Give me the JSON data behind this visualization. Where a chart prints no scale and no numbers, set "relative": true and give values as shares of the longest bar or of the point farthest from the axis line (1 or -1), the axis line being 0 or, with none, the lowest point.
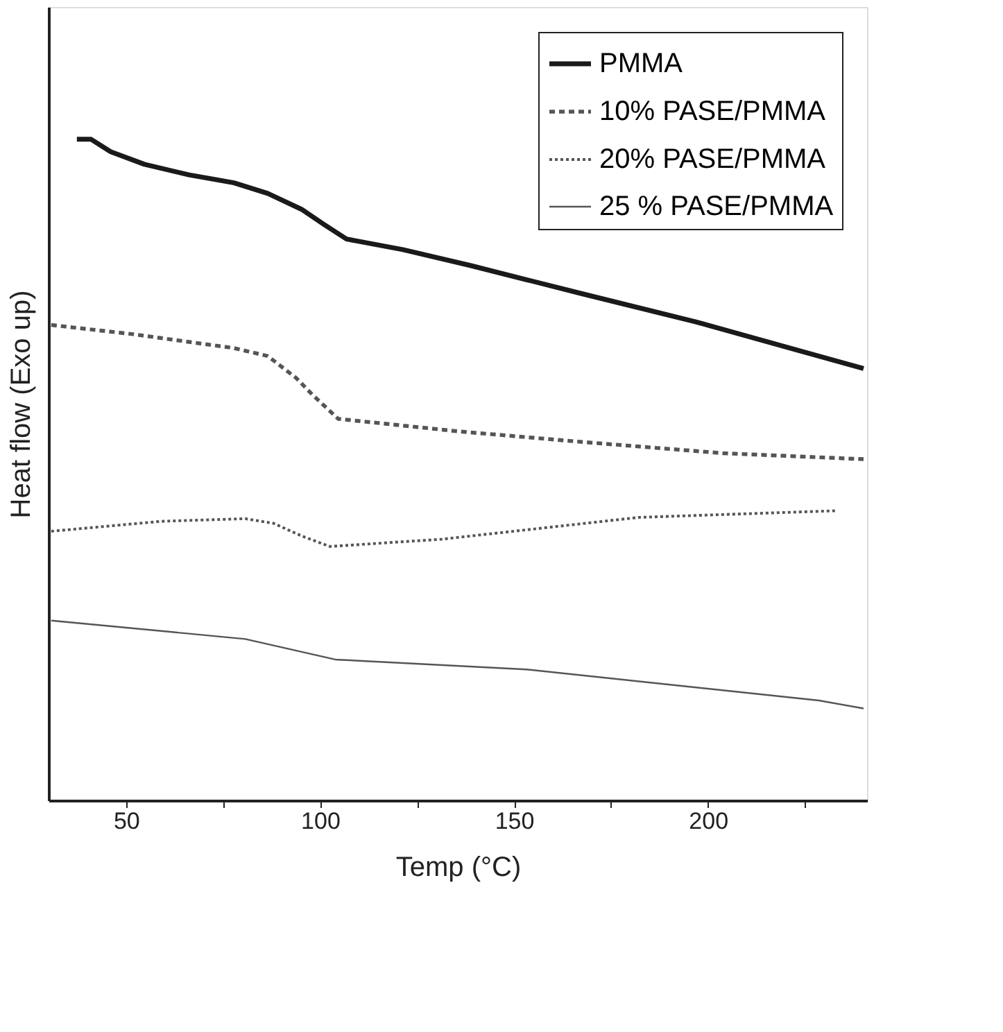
{
  "chart_data": {
    "type": "line",
    "relative": true,
    "xlabel": "Temp (°C)",
    "ylabel": "Heat flow (Exo up)",
    "xlim": [
      30,
      241
    ],
    "xticks": [
      50,
      {
        "value": 75,
        "label": null
      },
      100,
      {
        "value": 125,
        "label": null
      },
      150,
      {
        "value": 175,
        "label": null
      },
      200,
      {
        "value": 225,
        "label": null
      }
    ],
    "legend": "top right",
    "grid": false,
    "marker": "none",
    "series": [
      {
        "name": "PMMA",
        "color": "#1a1a1a",
        "line_style": "solid",
        "x": [
          37.3,
          40.9,
          46,
          54.7,
          66.2,
          77.8,
          86.5,
          95.2,
          101,
          106.8,
          121.3,
          138.7,
          167.7,
          196.7,
          240.1
        ],
        "values": [
          1.0,
          1.0,
          0.981,
          0.962,
          0.946,
          0.934,
          0.918,
          0.894,
          0.871,
          0.849,
          0.833,
          0.809,
          0.766,
          0.724,
          0.653
        ]
      },
      {
        "name": "10% PASE/PMMA",
        "color": "#555555",
        "line_style": "dashed",
        "x": [
          30.7,
          51.8,
          77.8,
          86.5,
          93.8,
          98.1,
          104.7,
          135.8,
          167.7,
          203.9,
          240.1
        ],
        "values": [
          0.719,
          0.705,
          0.684,
          0.672,
          0.639,
          0.613,
          0.577,
          0.558,
          0.542,
          0.525,
          0.516
        ]
      },
      {
        "name": "20% PASE/PMMA",
        "color": "#555555",
        "line_style": "dotted",
        "x": [
          30.7,
          59,
          80.7,
          88,
          95.2,
          102.5,
          131.4,
          182.2,
          232.9
        ],
        "values": [
          0.407,
          0.422,
          0.426,
          0.419,
          0.4,
          0.384,
          0.395,
          0.428,
          0.438
        ]
      },
      {
        "name": "25 % PASE/PMMA",
        "color": "#555555",
        "line_style": "solid",
        "x": [
          30.7,
          80.7,
          103.9,
          153.2,
          228.6,
          240.1
        ],
        "values": [
          0.272,
          0.244,
          0.213,
          0.198,
          0.151,
          0.139
        ]
      }
    ]
  }
}
